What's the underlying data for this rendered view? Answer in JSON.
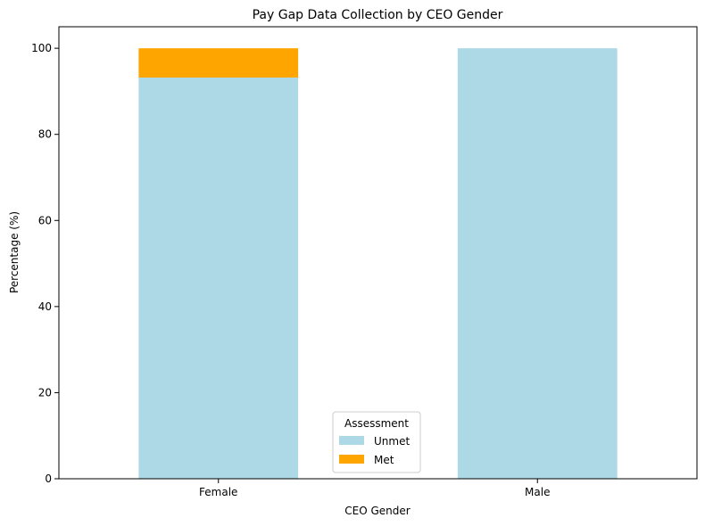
{
  "chart_data": {
    "type": "bar",
    "stacked": true,
    "title": "Pay Gap Data Collection by CEO Gender",
    "xlabel": "CEO Gender",
    "ylabel": "Percentage (%)",
    "categories": [
      "Female",
      "Male"
    ],
    "series": [
      {
        "name": "Unmet",
        "values": [
          93.2,
          100
        ],
        "color": "#add8e6"
      },
      {
        "name": "Met",
        "values": [
          6.8,
          0
        ],
        "color": "#ffa500"
      }
    ],
    "ylim": [
      0,
      105
    ],
    "yticks": [
      0,
      20,
      40,
      60,
      80,
      100
    ],
    "grid": false,
    "legend": {
      "title": "Assessment",
      "position": "bottom-center"
    }
  }
}
